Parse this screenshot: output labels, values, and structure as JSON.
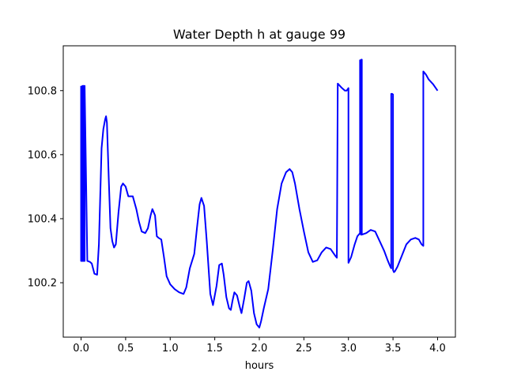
{
  "chart_data": {
    "type": "line",
    "title": "Water Depth h at gauge 99",
    "xlabel": "hours",
    "ylabel": "",
    "xlim": [
      -0.2,
      4.2
    ],
    "ylim": [
      100.03,
      100.94
    ],
    "grid": false,
    "legend": "none",
    "x_ticks": [
      0.0,
      0.5,
      1.0,
      1.5,
      2.0,
      2.5,
      3.0,
      3.5,
      4.0
    ],
    "x_tick_labels": [
      "0.0",
      "0.5",
      "1.0",
      "1.5",
      "2.0",
      "2.5",
      "3.0",
      "3.5",
      "4.0"
    ],
    "y_ticks": [
      100.2,
      100.4,
      100.6,
      100.8
    ],
    "y_tick_labels": [
      "100.2",
      "100.4",
      "100.6",
      "100.8"
    ],
    "series": [
      {
        "name": "",
        "color": "#0000ff",
        "x": [
          0.0,
          0.0,
          0.01,
          0.015,
          0.015,
          0.025,
          0.025,
          0.03,
          0.03,
          0.04,
          0.04,
          0.07,
          0.1,
          0.12,
          0.15,
          0.18,
          0.2,
          0.23,
          0.25,
          0.27,
          0.28,
          0.29,
          0.31,
          0.33,
          0.35,
          0.37,
          0.39,
          0.42,
          0.45,
          0.47,
          0.5,
          0.53,
          0.55,
          0.58,
          0.62,
          0.65,
          0.68,
          0.72,
          0.75,
          0.78,
          0.8,
          0.83,
          0.85,
          0.87,
          0.9,
          0.93,
          0.96,
          1.0,
          1.05,
          1.1,
          1.15,
          1.18,
          1.22,
          1.27,
          1.3,
          1.33,
          1.35,
          1.38,
          1.41,
          1.45,
          1.48,
          1.52,
          1.55,
          1.58,
          1.6,
          1.63,
          1.66,
          1.68,
          1.7,
          1.72,
          1.75,
          1.78,
          1.8,
          1.83,
          1.86,
          1.88,
          1.91,
          1.94,
          1.97,
          2.0,
          2.02,
          2.05,
          2.1,
          2.15,
          2.2,
          2.25,
          2.3,
          2.34,
          2.37,
          2.4,
          2.45,
          2.5,
          2.55,
          2.6,
          2.65,
          2.7,
          2.75,
          2.8,
          2.85,
          2.87,
          2.88,
          2.88,
          2.92,
          2.96,
          2.98,
          3.0,
          3.0,
          3.03,
          3.07,
          3.1,
          3.13,
          3.13,
          3.14,
          3.145,
          3.15,
          3.15,
          3.2,
          3.25,
          3.3,
          3.35,
          3.4,
          3.44,
          3.47,
          3.48,
          3.48,
          3.49,
          3.5,
          3.5,
          3.51,
          3.52,
          3.55,
          3.6,
          3.65,
          3.7,
          3.75,
          3.79,
          3.82,
          3.84,
          3.84,
          3.87,
          3.9,
          3.95,
          4.0
        ],
        "y": [
          100.815,
          100.268,
          100.268,
          100.815,
          100.268,
          100.268,
          100.815,
          100.815,
          100.268,
          100.268,
          100.815,
          100.268,
          100.265,
          100.26,
          100.228,
          100.225,
          100.32,
          100.62,
          100.68,
          100.71,
          100.72,
          100.7,
          100.53,
          100.37,
          100.33,
          100.31,
          100.32,
          100.42,
          100.5,
          100.51,
          100.5,
          100.47,
          100.47,
          100.47,
          100.43,
          100.39,
          100.36,
          100.355,
          100.37,
          100.41,
          100.43,
          100.41,
          100.345,
          100.34,
          100.335,
          100.28,
          100.22,
          100.195,
          100.18,
          100.17,
          100.165,
          100.185,
          100.245,
          100.29,
          100.37,
          100.445,
          100.465,
          100.44,
          100.33,
          100.165,
          100.13,
          100.19,
          100.255,
          100.26,
          100.225,
          100.155,
          100.12,
          100.115,
          100.145,
          100.17,
          100.16,
          100.125,
          100.105,
          100.15,
          100.2,
          100.205,
          100.175,
          100.105,
          100.07,
          100.06,
          100.08,
          100.12,
          100.18,
          100.3,
          100.43,
          100.51,
          100.545,
          100.555,
          100.545,
          100.51,
          100.43,
          100.36,
          100.295,
          100.265,
          100.27,
          100.295,
          100.31,
          100.305,
          100.285,
          100.278,
          100.822,
          100.822,
          100.81,
          100.8,
          100.8,
          100.808,
          100.262,
          100.28,
          100.32,
          100.345,
          100.355,
          100.895,
          100.35,
          100.897,
          100.897,
          100.35,
          100.355,
          100.365,
          100.36,
          100.33,
          100.3,
          100.27,
          100.25,
          100.245,
          100.79,
          100.79,
          100.788,
          100.24,
          100.233,
          100.235,
          100.25,
          100.285,
          100.32,
          100.335,
          100.34,
          100.335,
          100.32,
          100.315,
          100.86,
          100.85,
          100.835,
          100.82,
          100.8
        ]
      }
    ]
  }
}
